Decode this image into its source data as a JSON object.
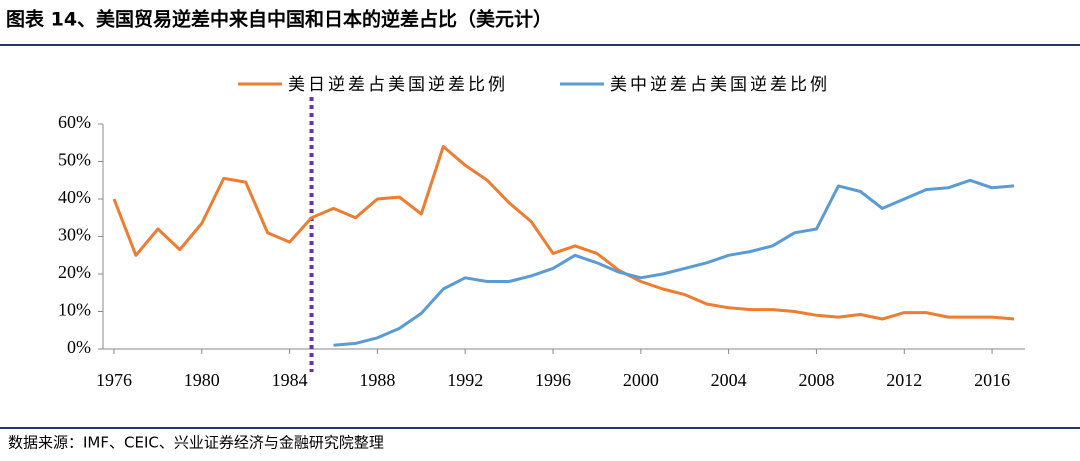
{
  "header": {
    "title": "图表 14、美国贸易逆差中来自中国和日本的逆差占比（美元计）"
  },
  "footer": {
    "source": "数据来源：IMF、CEIC、兴业证券经济与金融研究院整理"
  },
  "chart_data": {
    "type": "line",
    "x": [
      1976,
      1977,
      1978,
      1979,
      1980,
      1981,
      1982,
      1983,
      1984,
      1985,
      1986,
      1987,
      1988,
      1989,
      1990,
      1991,
      1992,
      1993,
      1994,
      1995,
      1996,
      1997,
      1998,
      1999,
      2000,
      2001,
      2002,
      2003,
      2004,
      2005,
      2006,
      2007,
      2008,
      2009,
      2010,
      2011,
      2012,
      2013,
      2014,
      2015,
      2016,
      2017
    ],
    "series": [
      {
        "name": "美日逆差占美国逆差比例",
        "color": "#ed7d31",
        "values": [
          40,
          25,
          32,
          26.5,
          33.5,
          45.5,
          44.5,
          31,
          28.5,
          35,
          37.5,
          35,
          40,
          40.5,
          36,
          54,
          49,
          45,
          39,
          34,
          25.5,
          27.5,
          25.5,
          21,
          18,
          16,
          14.5,
          12,
          11,
          10.5,
          10.5,
          10,
          9,
          8.5,
          9.2,
          8,
          9.7,
          9.7,
          8.5,
          8.5,
          8.5,
          8
        ]
      },
      {
        "name": "美中逆差占美国逆差比例",
        "color": "#5b9bd5",
        "values": [
          null,
          null,
          null,
          null,
          null,
          null,
          null,
          null,
          null,
          null,
          1,
          1.5,
          3,
          5.5,
          9.5,
          16,
          19,
          18,
          18,
          19.5,
          21.5,
          25,
          23,
          20.5,
          19,
          20,
          21.5,
          23,
          25,
          26,
          27.5,
          31,
          32,
          43.5,
          42,
          37.5,
          40,
          42.5,
          43,
          45,
          43,
          43.5
        ]
      }
    ],
    "xlim": [
      1975.5,
      2017.5
    ],
    "xticks": [
      1976,
      1980,
      1984,
      1988,
      1992,
      1996,
      2000,
      2004,
      2008,
      2012,
      2016
    ],
    "ylim": [
      0,
      60
    ],
    "yticks": [
      {
        "value": 0,
        "label": "0%"
      },
      {
        "value": 10,
        "label": "10%"
      },
      {
        "value": 20,
        "label": "20%"
      },
      {
        "value": 30,
        "label": "30%"
      },
      {
        "value": 40,
        "label": "40%"
      },
      {
        "value": 50,
        "label": "50%"
      },
      {
        "value": 60,
        "label": "60%"
      }
    ],
    "vline": {
      "x": 1985,
      "color": "#7030a0"
    }
  }
}
